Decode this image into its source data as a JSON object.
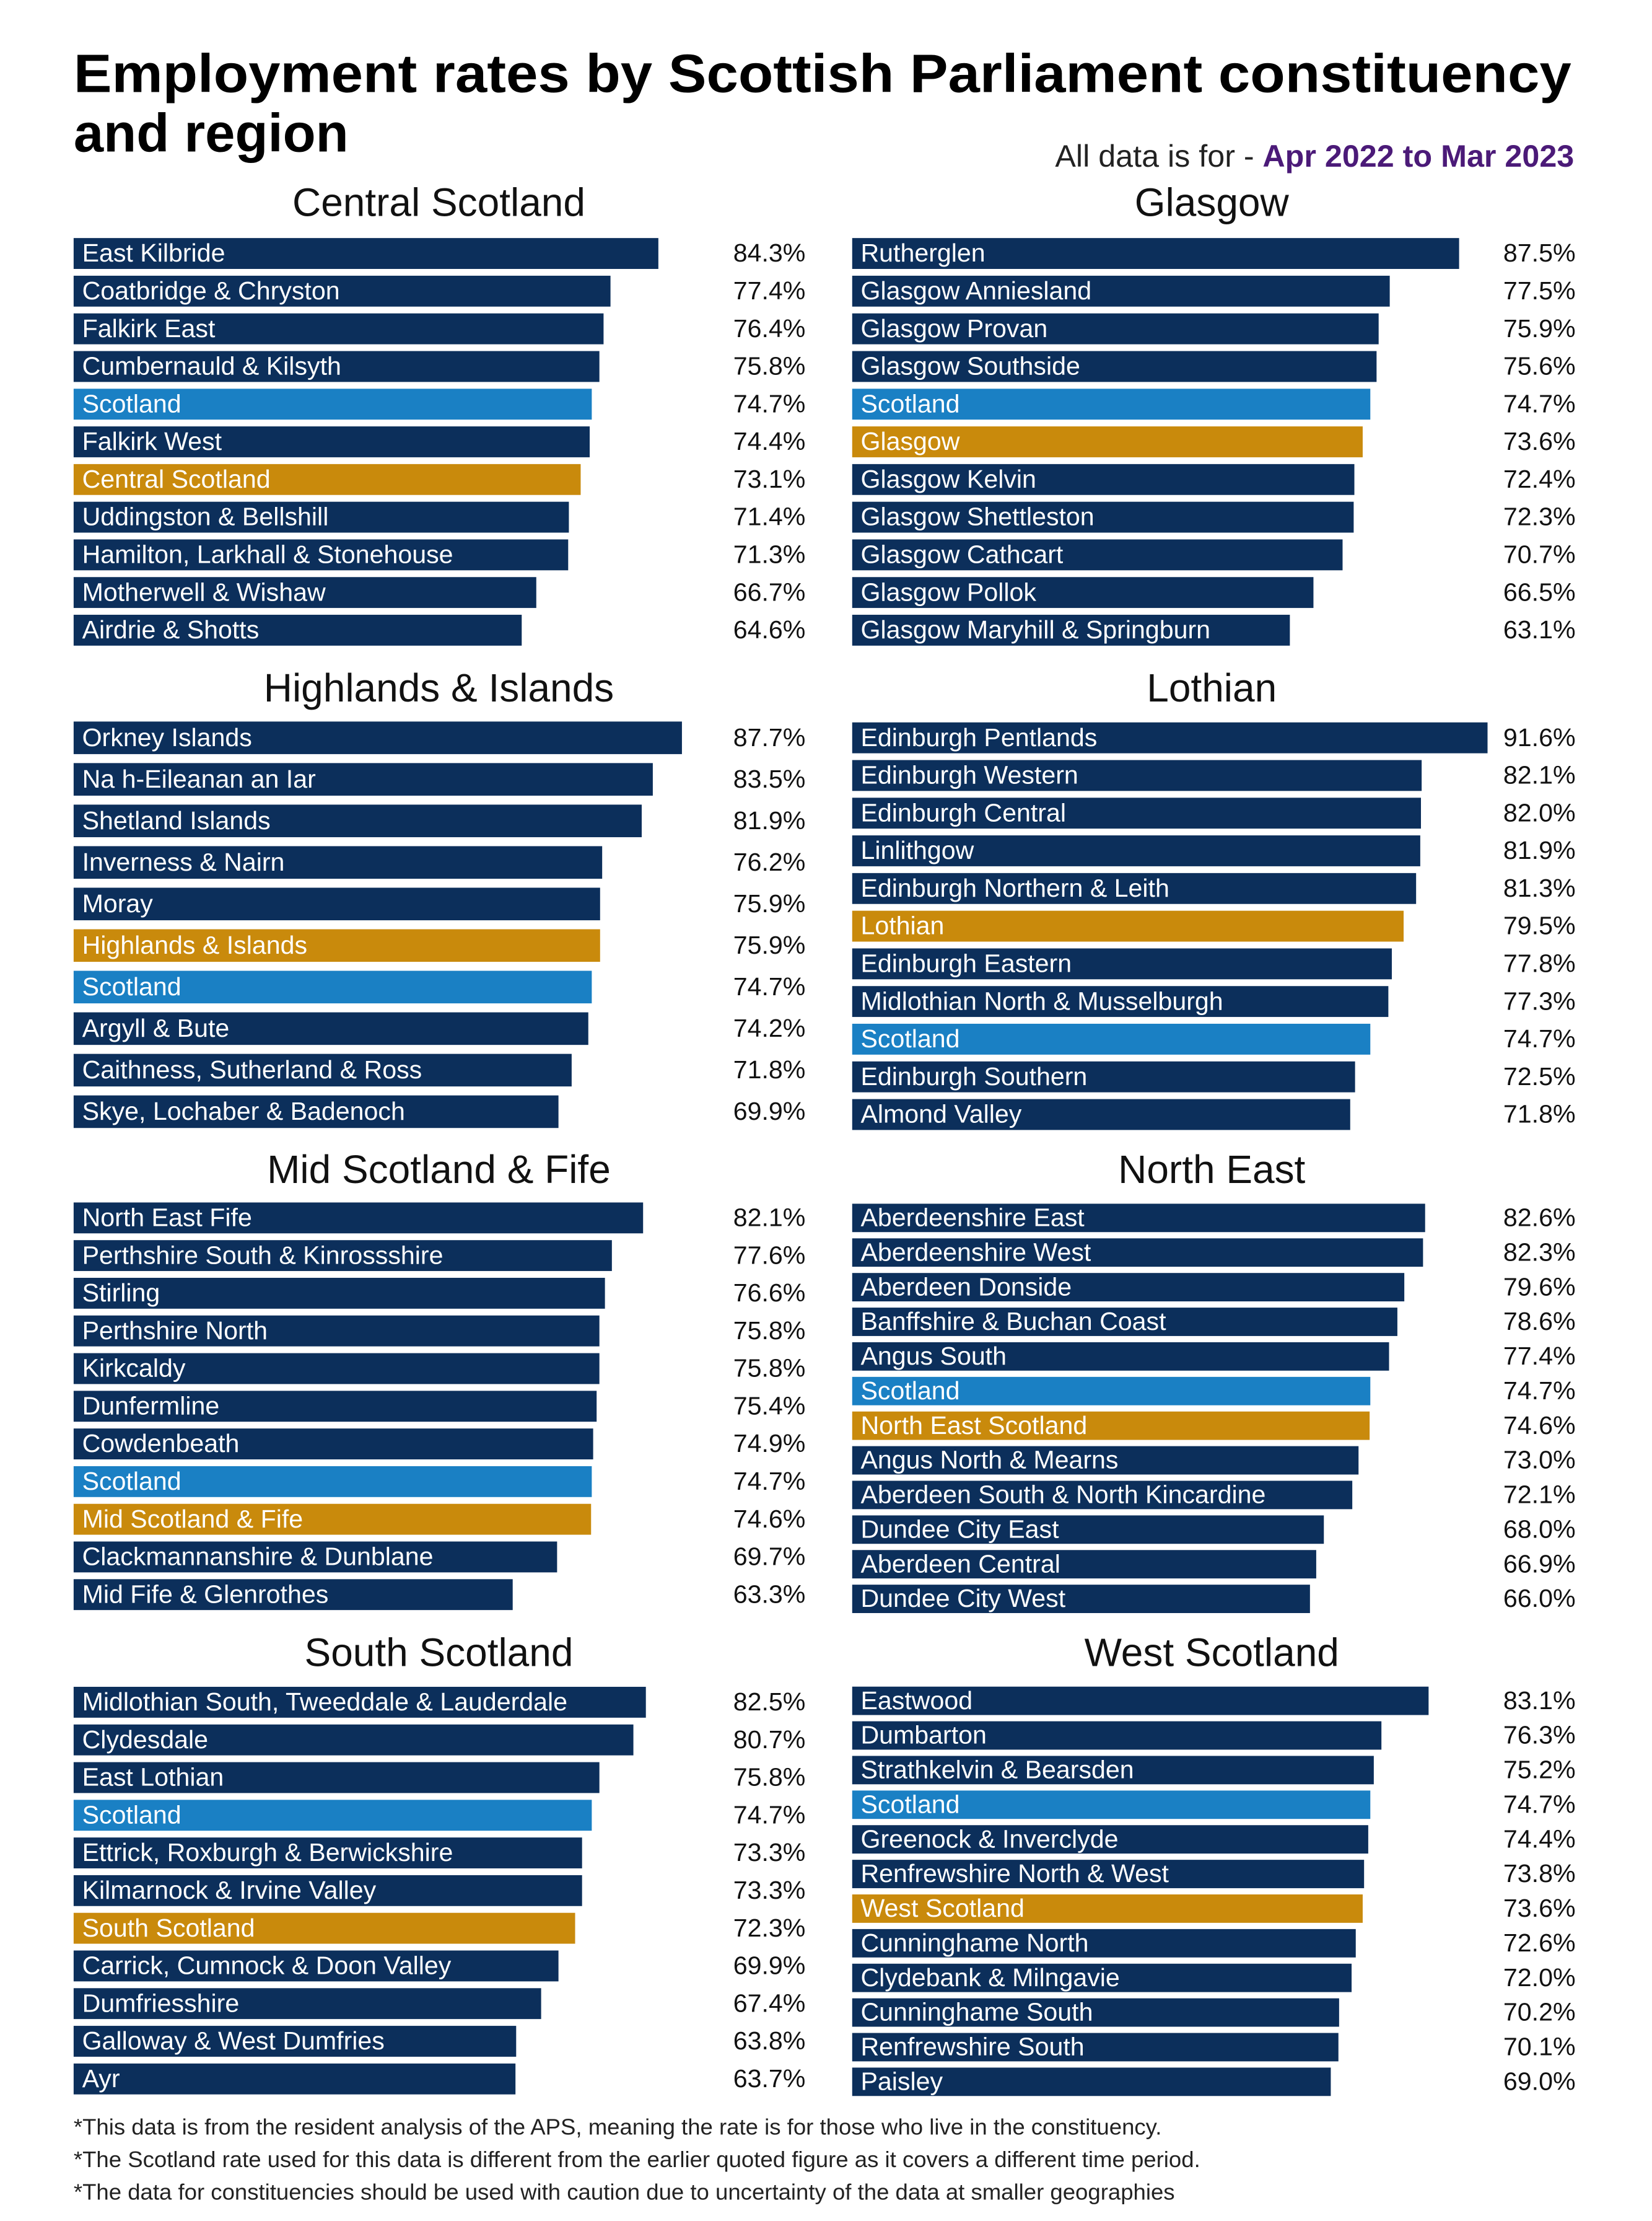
{
  "title": [
    "Employment rates by Scottish Parliament constituency",
    "and region"
  ],
  "subtitle": "All data is for -",
  "period": "Apr 2022 to Mar 2023",
  "footnotes": [
    "*This data is from the resident analysis of the APS, meaning the rate is for those who live in the constituency.",
    "*The Scotland rate used for this data is different from the earlier quoted figure as it covers a different time period.",
    "*The data for constituencies should be used with caution due to uncertainty of the data at smaller geographies"
  ],
  "chart_data": [
    {
      "type": "bar",
      "title": "Central Scotland",
      "categories": [
        "East Kilbride",
        "Coatbridge & Chryston",
        "Falkirk East",
        "Cumbernauld & Kilsyth",
        "Scotland",
        "Falkirk West",
        "Central Scotland",
        "Uddingston & Bellshill",
        "Hamilton, Larkhall & Stonehouse",
        "Motherwell & Wishaw",
        "Airdrie & Shotts"
      ],
      "values": [
        84.3,
        77.4,
        76.4,
        75.8,
        74.7,
        74.4,
        73.1,
        71.4,
        71.3,
        66.7,
        64.6
      ],
      "value_labels": [
        "84.3%",
        "77.4%",
        "76.4%",
        "75.8%",
        "74.7%",
        "74.4%",
        "73.1%",
        "71.4%",
        "71.3%",
        "66.7%",
        "64.6%"
      ],
      "colors": [
        "#0c2f5b",
        "#0c2f5b",
        "#0c2f5b",
        "#0c2f5b",
        "#1a80c4",
        "#0c2f5b",
        "#c98a0c",
        "#0c2f5b",
        "#0c2f5b",
        "#0c2f5b",
        "#0c2f5b"
      ]
    },
    {
      "type": "bar",
      "title": "Glasgow",
      "categories": [
        "Rutherglen",
        "Glasgow Anniesland",
        "Glasgow Provan",
        "Glasgow Southside",
        "Scotland",
        "Glasgow",
        "Glasgow Kelvin",
        "Glasgow Shettleston",
        "Glasgow Cathcart",
        "Glasgow Pollok",
        "Glasgow Maryhill & Springburn"
      ],
      "values": [
        87.5,
        77.5,
        75.9,
        75.6,
        74.7,
        73.6,
        72.4,
        72.3,
        70.7,
        66.5,
        63.1
      ],
      "value_labels": [
        "87.5%",
        "77.5%",
        "75.9%",
        "75.6%",
        "74.7%",
        "73.6%",
        "72.4%",
        "72.3%",
        "70.7%",
        "66.5%",
        "63.1%"
      ],
      "colors": [
        "#0c2f5b",
        "#0c2f5b",
        "#0c2f5b",
        "#0c2f5b",
        "#1a80c4",
        "#c98a0c",
        "#0c2f5b",
        "#0c2f5b",
        "#0c2f5b",
        "#0c2f5b",
        "#0c2f5b"
      ]
    },
    {
      "type": "bar",
      "title": "Highlands & Islands",
      "categories": [
        "Orkney Islands",
        "Na h-Eileanan an Iar",
        "Shetland Islands",
        "Inverness & Nairn",
        "Moray",
        "Highlands & Islands",
        "Scotland",
        "Argyll & Bute",
        "Caithness, Sutherland & Ross",
        "Skye, Lochaber & Badenoch"
      ],
      "values": [
        87.7,
        83.5,
        81.9,
        76.2,
        75.9,
        75.9,
        74.7,
        74.2,
        71.8,
        69.9
      ],
      "value_labels": [
        "87.7%",
        "83.5%",
        "81.9%",
        "76.2%",
        "75.9%",
        "75.9%",
        "74.7%",
        "74.2%",
        "71.8%",
        "69.9%"
      ],
      "colors": [
        "#0c2f5b",
        "#0c2f5b",
        "#0c2f5b",
        "#0c2f5b",
        "#0c2f5b",
        "#c98a0c",
        "#1a80c4",
        "#0c2f5b",
        "#0c2f5b",
        "#0c2f5b"
      ]
    },
    {
      "type": "bar",
      "title": "Lothian",
      "categories": [
        "Edinburgh Pentlands",
        "Edinburgh Western",
        "Edinburgh Central",
        "Linlithgow",
        "Edinburgh Northern & Leith",
        "Lothian",
        "Edinburgh Eastern",
        "Midlothian North & Musselburgh",
        "Scotland",
        "Edinburgh Southern",
        "Almond Valley"
      ],
      "values": [
        91.6,
        82.1,
        82.0,
        81.9,
        81.3,
        79.5,
        77.8,
        77.3,
        74.7,
        72.5,
        71.8
      ],
      "value_labels": [
        "91.6%",
        "82.1%",
        "82.0%",
        "81.9%",
        "81.3%",
        "79.5%",
        "77.8%",
        "77.3%",
        "74.7%",
        "72.5%",
        "71.8%"
      ],
      "colors": [
        "#0c2f5b",
        "#0c2f5b",
        "#0c2f5b",
        "#0c2f5b",
        "#0c2f5b",
        "#c98a0c",
        "#0c2f5b",
        "#0c2f5b",
        "#1a80c4",
        "#0c2f5b",
        "#0c2f5b"
      ]
    },
    {
      "type": "bar",
      "title": "Mid Scotland & Fife",
      "categories": [
        "North East Fife",
        "Perthshire South & Kinrossshire",
        "Stirling",
        "Perthshire North",
        "Kirkcaldy",
        "Dunfermline",
        "Cowdenbeath",
        "Scotland",
        "Mid Scotland & Fife",
        "Clackmannanshire & Dunblane",
        "Mid Fife & Glenrothes"
      ],
      "values": [
        82.1,
        77.6,
        76.6,
        75.8,
        75.8,
        75.4,
        74.9,
        74.7,
        74.6,
        69.7,
        63.3
      ],
      "value_labels": [
        "82.1%",
        "77.6%",
        "76.6%",
        "75.8%",
        "75.8%",
        "75.4%",
        "74.9%",
        "74.7%",
        "74.6%",
        "69.7%",
        "63.3%"
      ],
      "colors": [
        "#0c2f5b",
        "#0c2f5b",
        "#0c2f5b",
        "#0c2f5b",
        "#0c2f5b",
        "#0c2f5b",
        "#0c2f5b",
        "#1a80c4",
        "#c98a0c",
        "#0c2f5b",
        "#0c2f5b"
      ]
    },
    {
      "type": "bar",
      "title": "North East",
      "categories": [
        "Aberdeenshire East",
        "Aberdeenshire West",
        "Aberdeen Donside",
        "Banffshire & Buchan Coast",
        "Angus South",
        "Scotland",
        "North East Scotland",
        "Angus North & Mearns",
        "Aberdeen South & North Kincardine",
        "Dundee City East",
        "Aberdeen Central",
        "Dundee City West"
      ],
      "values": [
        82.6,
        82.3,
        79.6,
        78.6,
        77.4,
        74.7,
        74.6,
        73.0,
        72.1,
        68.0,
        66.9,
        66.0
      ],
      "value_labels": [
        "82.6%",
        "82.3%",
        "79.6%",
        "78.6%",
        "77.4%",
        "74.7%",
        "74.6%",
        "73.0%",
        "72.1%",
        "68.0%",
        "66.9%",
        "66.0%"
      ],
      "colors": [
        "#0c2f5b",
        "#0c2f5b",
        "#0c2f5b",
        "#0c2f5b",
        "#0c2f5b",
        "#1a80c4",
        "#c98a0c",
        "#0c2f5b",
        "#0c2f5b",
        "#0c2f5b",
        "#0c2f5b",
        "#0c2f5b"
      ]
    },
    {
      "type": "bar",
      "title": "South Scotland",
      "categories": [
        "Midlothian South, Tweeddale & Lauderdale",
        "Clydesdale",
        "East Lothian",
        "Scotland",
        "Ettrick, Roxburgh & Berwickshire",
        "Kilmarnock & Irvine Valley",
        "South Scotland",
        "Carrick, Cumnock & Doon Valley",
        "Dumfriesshire",
        "Galloway & West Dumfries",
        "Ayr"
      ],
      "values": [
        82.5,
        80.7,
        75.8,
        74.7,
        73.3,
        73.3,
        72.3,
        69.9,
        67.4,
        63.8,
        63.7
      ],
      "value_labels": [
        "82.5%",
        "80.7%",
        "75.8%",
        "74.7%",
        "73.3%",
        "73.3%",
        "72.3%",
        "69.9%",
        "67.4%",
        "63.8%",
        "63.7%"
      ],
      "colors": [
        "#0c2f5b",
        "#0c2f5b",
        "#0c2f5b",
        "#1a80c4",
        "#0c2f5b",
        "#0c2f5b",
        "#c98a0c",
        "#0c2f5b",
        "#0c2f5b",
        "#0c2f5b",
        "#0c2f5b"
      ]
    },
    {
      "type": "bar",
      "title": "West Scotland",
      "categories": [
        "Eastwood",
        "Dumbarton",
        "Strathkelvin & Bearsden",
        "Scotland",
        "Greenock & Inverclyde",
        "Renfrewshire North & West",
        "West Scotland",
        "Cunninghame North",
        "Clydebank & Milngavie",
        "Cunninghame South",
        "Renfrewshire South",
        "Paisley"
      ],
      "values": [
        83.1,
        76.3,
        75.2,
        74.7,
        74.4,
        73.8,
        73.6,
        72.6,
        72.0,
        70.2,
        70.1,
        69.0
      ],
      "value_labels": [
        "83.1%",
        "76.3%",
        "75.2%",
        "74.7%",
        "74.4%",
        "73.8%",
        "73.6%",
        "72.6%",
        "72.0%",
        "70.2%",
        "70.1%",
        "69.0%"
      ],
      "colors": [
        "#0c2f5b",
        "#0c2f5b",
        "#0c2f5b",
        "#1a80c4",
        "#0c2f5b",
        "#0c2f5b",
        "#c98a0c",
        "#0c2f5b",
        "#0c2f5b",
        "#0c2f5b",
        "#0c2f5b",
        "#0c2f5b"
      ]
    }
  ]
}
